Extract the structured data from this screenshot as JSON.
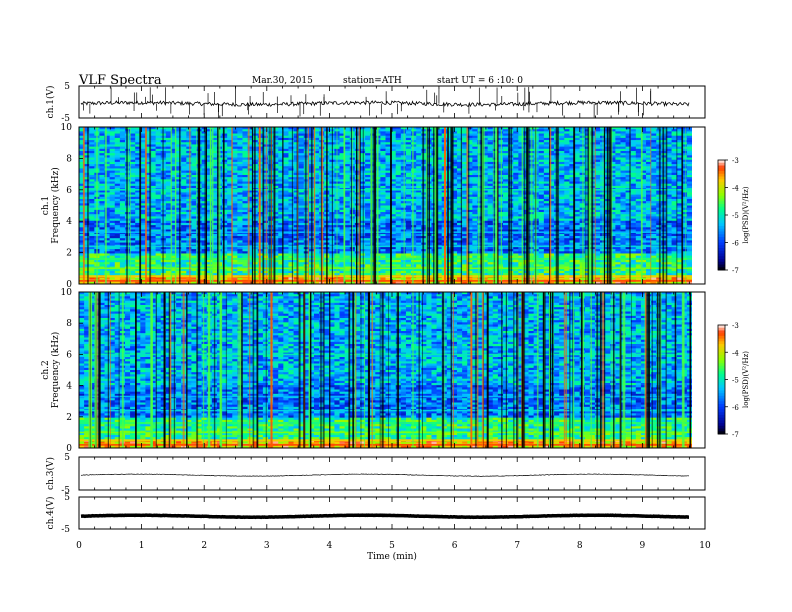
{
  "header": {
    "title": "VLF  Spectra",
    "date": "Mar.30, 2015",
    "station": "station=ATH",
    "start": "start  UT  =   6  :10: 0"
  },
  "chart_data": [
    {
      "type": "line",
      "ylabel": "ch.1(V)",
      "ylim": [
        -5,
        5
      ],
      "yticks": [
        "5",
        "-5"
      ],
      "description": "noisy waveform near -0.5 V with many spikes"
    },
    {
      "type": "heatmap",
      "ylabel": "ch.1\nFrequency (kHz)",
      "ylim": [
        0,
        10
      ],
      "yticks": [
        "0",
        "2",
        "4",
        "6",
        "8",
        "10"
      ],
      "colorbar": {
        "label": "log(PSD)(V²/Hz)",
        "range": [
          -7,
          -3
        ],
        "ticks": [
          "-3",
          "-4",
          "-5",
          "-6",
          "-7"
        ]
      }
    },
    {
      "type": "heatmap",
      "ylabel": "ch.2\nFrequency (kHz)",
      "ylim": [
        0,
        10
      ],
      "yticks": [
        "0",
        "2",
        "4",
        "6",
        "8",
        "10"
      ],
      "colorbar": {
        "label": "log(PSD)(V²/Hz)",
        "range": [
          -7,
          -3
        ],
        "ticks": [
          "-3",
          "-4",
          "-5",
          "-6",
          "-7"
        ]
      }
    },
    {
      "type": "line",
      "ylabel": "ch.3(V)",
      "ylim": [
        -5,
        5
      ],
      "yticks": [
        "5",
        "-5"
      ],
      "description": "flat trace near -0.5 V"
    },
    {
      "type": "line",
      "ylabel": "ch.4(V)",
      "ylim": [
        -5,
        5
      ],
      "yticks": [
        "5",
        "-5"
      ],
      "description": "thick flat trace near -1 V"
    }
  ],
  "xaxis": {
    "label": "Time  (min)",
    "xlim": [
      0,
      10
    ],
    "ticks": [
      "0",
      "1",
      "2",
      "3",
      "4",
      "5",
      "6",
      "7",
      "8",
      "9",
      "10"
    ]
  }
}
